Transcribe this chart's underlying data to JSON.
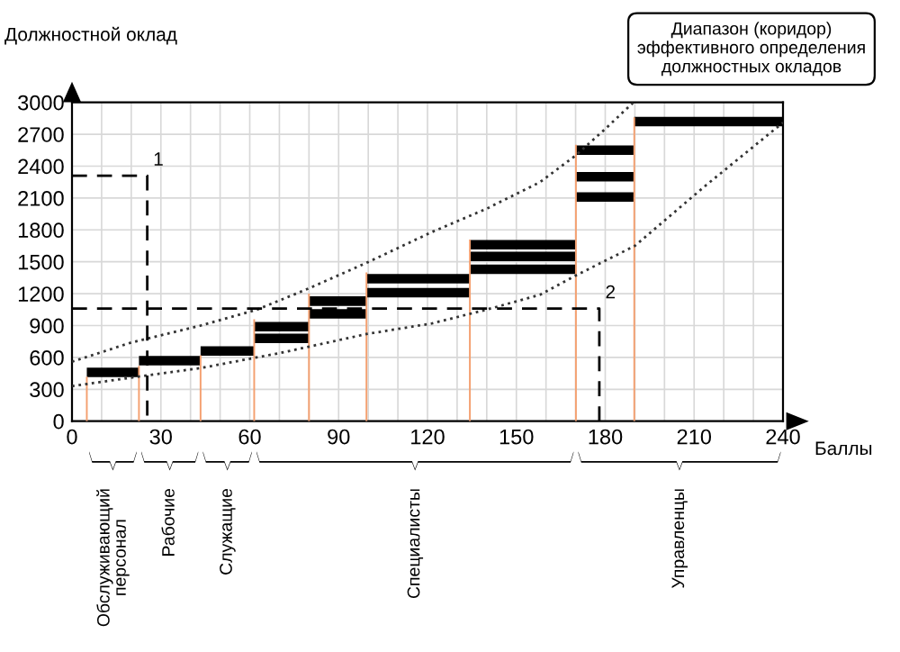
{
  "chart_data": {
    "type": "line",
    "xlabel": "Баллы",
    "ylabel": "Должностной оклад",
    "xlim": [
      0,
      240
    ],
    "ylim": [
      0,
      3000
    ],
    "xticks": [
      0,
      {
        "value": 10,
        "label": null
      },
      {
        "value": 20,
        "label": null
      },
      30,
      {
        "value": 40,
        "label": null
      },
      {
        "value": 50,
        "label": null
      },
      60,
      {
        "value": 70,
        "label": null
      },
      {
        "value": 80,
        "label": null
      },
      90,
      {
        "value": 100,
        "label": null
      },
      {
        "value": 110,
        "label": null
      },
      120,
      {
        "value": 130,
        "label": null
      },
      {
        "value": 140,
        "label": null
      },
      150,
      {
        "value": 160,
        "label": null
      },
      {
        "value": 170,
        "label": null
      },
      180,
      {
        "value": 190,
        "label": null
      },
      {
        "value": 200,
        "label": null
      },
      210,
      {
        "value": 220,
        "label": null
      },
      {
        "value": 230,
        "label": null
      },
      240
    ],
    "yticks": [
      0,
      300,
      600,
      900,
      1200,
      1500,
      1800,
      2100,
      2400,
      2700,
      3000
    ],
    "grid": true,
    "series": [
      {
        "color": "#f4a070",
        "line_style": "solid",
        "x": [
          5,
          5
        ],
        "values": [
          0,
          420
        ]
      },
      {
        "color": "#f4a070",
        "line_style": "solid",
        "x": [
          22.6,
          22.6
        ],
        "values": [
          0,
          520
        ]
      },
      {
        "color": "#f4a070",
        "line_style": "solid",
        "x": [
          43.4,
          43.4
        ],
        "values": [
          0,
          620
        ]
      },
      {
        "color": "#f4a070",
        "line_style": "solid",
        "x": [
          61.5,
          61.5
        ],
        "values": [
          0,
          960
        ]
      },
      {
        "color": "#f4a070",
        "line_style": "solid",
        "x": [
          80,
          80
        ],
        "values": [
          0,
          1200
        ]
      },
      {
        "color": "#f4a070",
        "line_style": "solid",
        "x": [
          99.4,
          99.4
        ],
        "values": [
          0,
          1400
        ]
      },
      {
        "color": "#f4a070",
        "line_style": "solid",
        "x": [
          134.3,
          134.3
        ],
        "values": [
          0,
          1710
        ]
      },
      {
        "color": "#f4a070",
        "line_style": "solid",
        "x": [
          170.1,
          170.1
        ],
        "values": [
          0,
          2600
        ]
      },
      {
        "color": "#f4a070",
        "line_style": "solid",
        "x": [
          189.8,
          189.8
        ],
        "values": [
          0,
          2860
        ]
      },
      {
        "type": "step",
        "color": "#000000",
        "x": [
          5,
          22.6
        ],
        "values": [
          460,
          460
        ]
      },
      {
        "type": "step",
        "color": "#000000",
        "x": [
          22.6,
          43.4
        ],
        "values": [
          570,
          570
        ]
      },
      {
        "type": "step",
        "color": "#000000",
        "x": [
          43.4,
          61.5
        ],
        "values": [
          660,
          660
        ]
      },
      {
        "type": "step",
        "color": "#000000",
        "x": [
          61.5,
          80
        ],
        "values": [
          890,
          890
        ]
      },
      {
        "type": "step",
        "color": "#000000",
        "x": [
          61.5,
          80
        ],
        "values": [
          780,
          780
        ]
      },
      {
        "type": "step",
        "color": "#000000",
        "x": [
          80,
          99.4
        ],
        "values": [
          1130,
          1130
        ]
      },
      {
        "type": "step",
        "color": "#000000",
        "x": [
          80,
          99.4
        ],
        "values": [
          1010,
          1010
        ]
      },
      {
        "type": "step",
        "color": "#000000",
        "x": [
          99.4,
          134.3
        ],
        "values": [
          1340,
          1340
        ]
      },
      {
        "type": "step",
        "color": "#000000",
        "x": [
          99.4,
          134.3
        ],
        "values": [
          1210,
          1210
        ]
      },
      {
        "type": "step",
        "color": "#000000",
        "x": [
          134.3,
          170.1
        ],
        "values": [
          1660,
          1660
        ]
      },
      {
        "type": "step",
        "color": "#000000",
        "x": [
          134.3,
          170.1
        ],
        "values": [
          1550,
          1550
        ]
      },
      {
        "type": "step",
        "color": "#000000",
        "x": [
          134.3,
          170.1
        ],
        "values": [
          1430,
          1430
        ]
      },
      {
        "type": "step",
        "color": "#000000",
        "x": [
          170.1,
          189.8
        ],
        "values": [
          2550,
          2550
        ]
      },
      {
        "type": "step",
        "color": "#000000",
        "x": [
          170.1,
          189.8
        ],
        "values": [
          2300,
          2300
        ]
      },
      {
        "type": "step",
        "color": "#000000",
        "x": [
          170.1,
          189.8
        ],
        "values": [
          2110,
          2110
        ]
      },
      {
        "type": "step",
        "color": "#000000",
        "x": [
          189.8,
          240
        ],
        "values": [
          2820,
          2820
        ]
      },
      {
        "color": "#333333",
        "line_style": "dotted",
        "x": [
          0,
          20,
          43.4,
          62.5,
          80,
          99.4,
          121.5,
          140,
          158,
          170,
          180,
          189.5
        ],
        "values": [
          560,
          740,
          900,
          1050,
          1250,
          1490,
          1780,
          2000,
          2250,
          2500,
          2750,
          3000
        ]
      },
      {
        "color": "#333333",
        "line_style": "dotted",
        "x": [
          0,
          20,
          43.4,
          70,
          99.4,
          121.5,
          140,
          158,
          170,
          190,
          214,
          240
        ],
        "values": [
          330,
          410,
          500,
          640,
          820,
          920,
          1050,
          1190,
          1370,
          1650,
          2220,
          2810
        ]
      },
      {
        "color": "#000000",
        "line_style": "dashed",
        "x": [
          0,
          25.4,
          25.4
        ],
        "values": [
          2310,
          2310,
          0
        ]
      },
      {
        "color": "#000000",
        "line_style": "dashed",
        "x": [
          0,
          178,
          178
        ],
        "values": [
          1060,
          1060,
          0
        ]
      }
    ],
    "annotations": [
      "1",
      "2",
      "Диапазон (коридор) эффективного определения должностных окладов",
      "Обслуживающий\nперсонал",
      "Рабочие",
      "Служащие",
      "Специалисты",
      "Управленцы"
    ]
  }
}
